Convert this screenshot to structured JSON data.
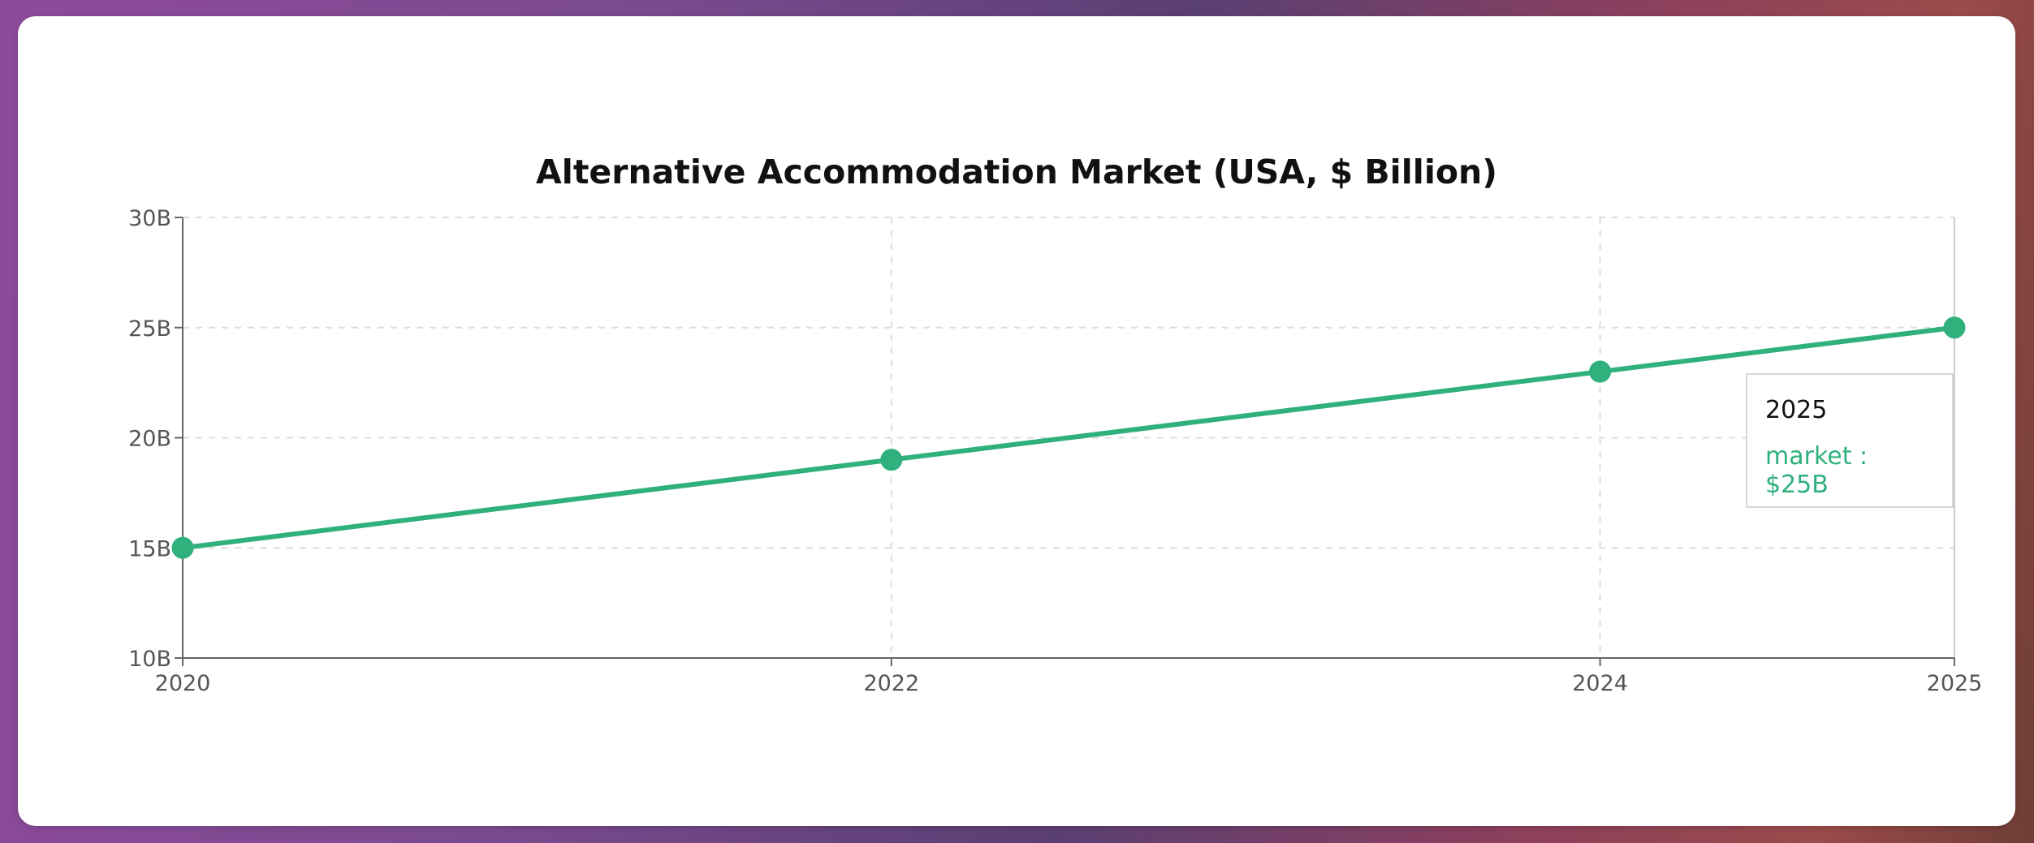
{
  "colors": {
    "line": "#2fb07d",
    "grid": "#dddddd",
    "axis": "#666666",
    "card": "#ffffff"
  },
  "chart_data": {
    "type": "line",
    "title": "Alternative Accommodation Market (USA, $ Billion)",
    "xlabel": "",
    "ylabel": "",
    "series": [
      {
        "name": "market",
        "x": [
          "2020",
          "2022",
          "2024",
          "2025"
        ],
        "values": [
          15,
          19,
          23,
          25
        ]
      }
    ],
    "x_ticks": [
      "2020",
      "2022",
      "2024",
      "2025"
    ],
    "x_positions": [
      2020,
      2022,
      2024,
      2025
    ],
    "y_ticks": [
      "10B",
      "15B",
      "20B",
      "25B",
      "30B"
    ],
    "y_tick_values": [
      10,
      15,
      20,
      25,
      30
    ],
    "ylim": [
      10,
      30
    ],
    "grid": true,
    "tooltip": {
      "label": "2025",
      "item": "market : $25B"
    }
  }
}
